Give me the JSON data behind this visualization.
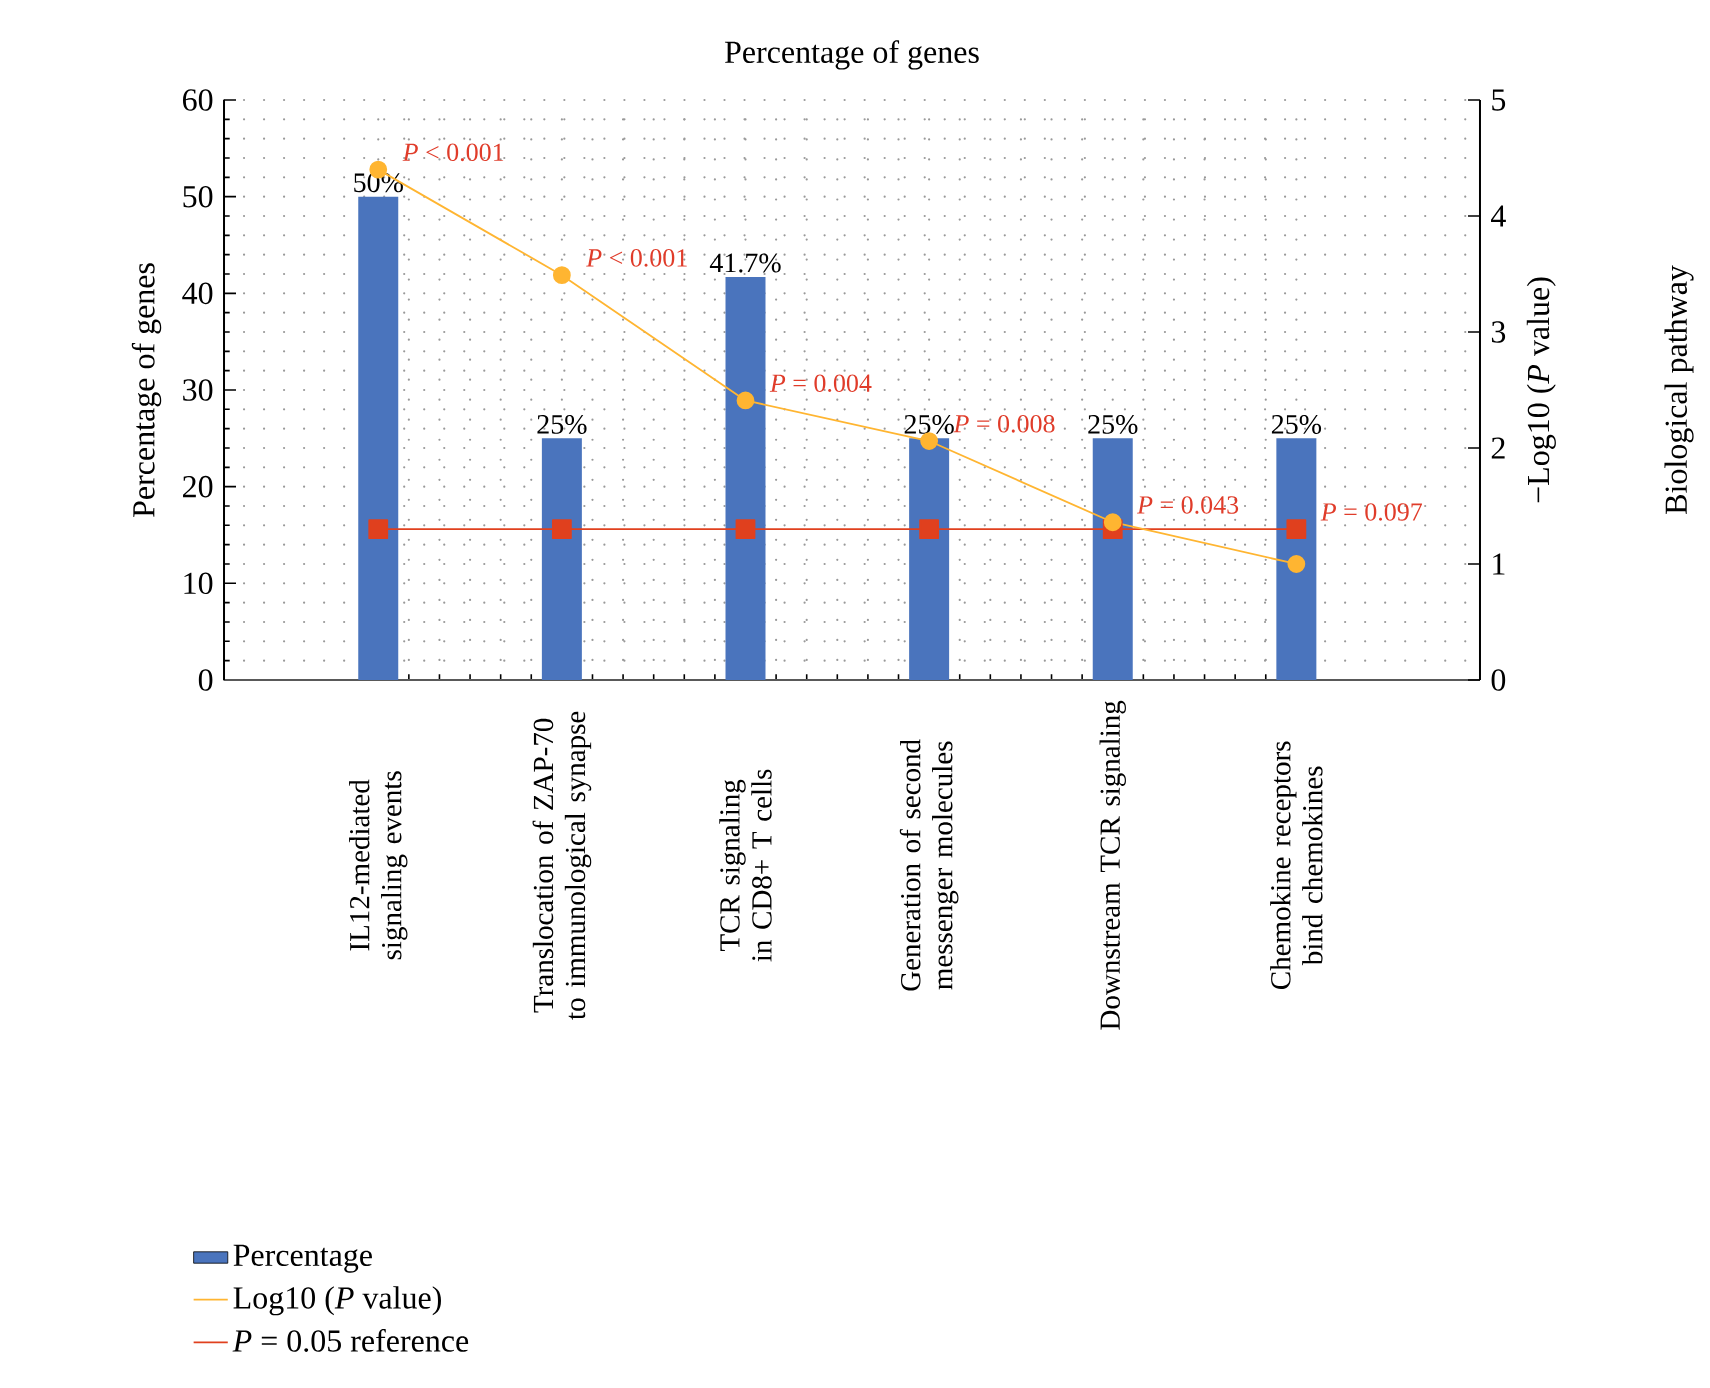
{
  "chart_data": {
    "type": "bar",
    "title": "Percentage of genes",
    "ylabel": "Percentage of genes",
    "y2label": "−Log10 (*P* value)",
    "categories": [
      "IL12-mediated signaling events",
      "Translocation of ZAP-70 to immunological synapse",
      "TCR signaling in CD8+ T cells",
      "Generation of second messenger molecules",
      "Downstream TCR signaling",
      "Chemokine receptors bind chemokines"
    ],
    "series": [
      {
        "name": "Percentage",
        "color": "#4a74bd",
        "values": [
          50,
          25,
          41.7,
          25,
          25,
          25
        ],
        "value_labels": [
          "50%",
          "25%",
          "41.7%",
          "25%",
          "25%",
          "25%"
        ]
      },
      {
        "name": "Log10 (*P* value)",
        "type": "line",
        "axis": "y2",
        "color": "#ffb531",
        "marker": "circle",
        "values": [
          4.4,
          3.49,
          2.41,
          2.06,
          1.36,
          1.0
        ]
      },
      {
        "name": "*P* = 0.05 reference",
        "type": "line",
        "axis": "y2",
        "color": "#e0401e",
        "marker": "square",
        "values": [
          1.3,
          1.3,
          1.3,
          1.3,
          1.3,
          1.3
        ]
      }
    ],
    "annotations": [
      "Biological pathway",
      "*P* < 0.001",
      "*P* < 0.001",
      "*P* = 0.004",
      "*P* = 0.008",
      "*P* = 0.043",
      "*P* = 0.097"
    ],
    "ylim": [
      0,
      60
    ],
    "yticks": [
      0,
      10,
      20,
      30,
      40,
      50,
      60
    ],
    "y2lim": [
      0,
      5
    ],
    "y2ticks": [
      0,
      1,
      2,
      3,
      4,
      5
    ],
    "grid": true,
    "legend": "bottom left"
  }
}
